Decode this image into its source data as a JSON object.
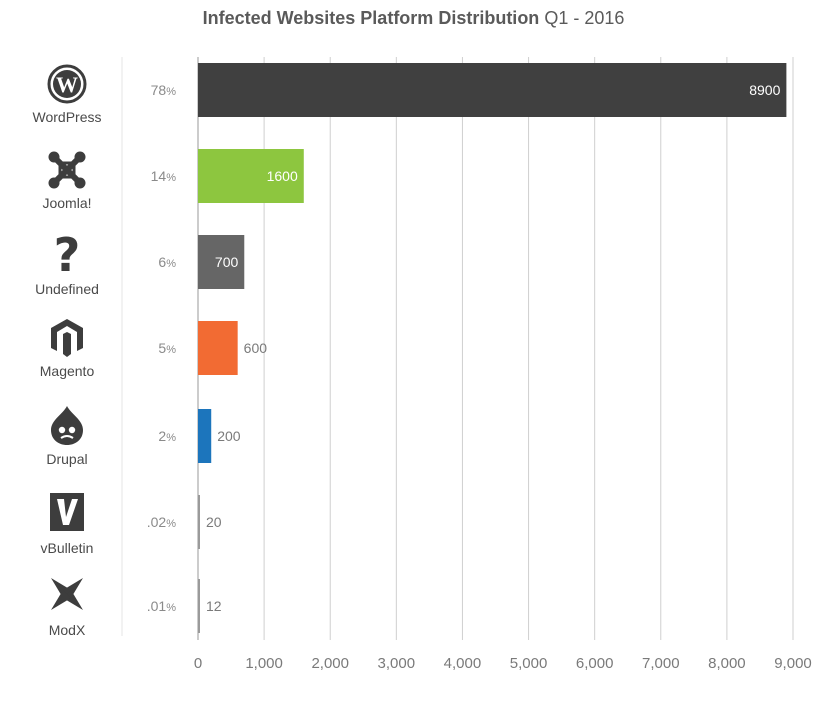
{
  "chart_data": {
    "type": "bar",
    "orientation": "horizontal",
    "title": "Infected Websites Platform Distribution",
    "subtitle": "Q1 - 2016",
    "xlim": [
      0,
      9000
    ],
    "x_ticks": [
      "0",
      "1,000",
      "2,000",
      "3,000",
      "4,000",
      "5,000",
      "6,000",
      "7,000",
      "8,000",
      "9,000"
    ],
    "x_tick_values": [
      0,
      1000,
      2000,
      3000,
      4000,
      5000,
      6000,
      7000,
      8000,
      9000
    ],
    "grid": "vertical",
    "categories": [
      "WordPress",
      "Joomla!",
      "Undefined",
      "Magento",
      "Drupal",
      "vBulletin",
      "ModX"
    ],
    "values": [
      8900,
      1600,
      700,
      600,
      200,
      20,
      12
    ],
    "value_labels": [
      "8900",
      "1600",
      "700",
      "600",
      "200",
      "20",
      "12"
    ],
    "percent_numbers": [
      "78",
      "14",
      "6",
      "5",
      "2",
      ".02",
      ".01"
    ],
    "percent_sign": "%",
    "colors": [
      "#404040",
      "#8dc63f",
      "#666666",
      "#f26b33",
      "#1c75bc",
      "#9a9a9a",
      "#9a9a9a"
    ],
    "icons": [
      "wordpress-icon",
      "joomla-icon",
      "question-mark-icon",
      "magento-icon",
      "drupal-icon",
      "vbulletin-icon",
      "modx-icon"
    ]
  }
}
